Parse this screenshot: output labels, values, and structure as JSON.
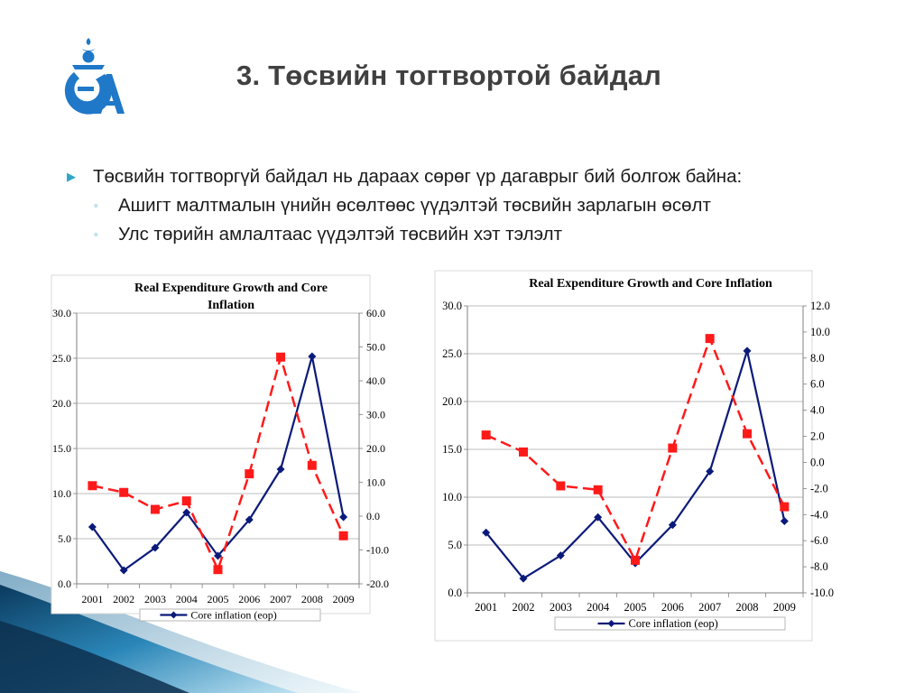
{
  "slide": {
    "title": "3. Төсвийн тогтвортой байдал",
    "logo": {
      "icon": "soyombo-logo-icon",
      "letters": "ЭЗА",
      "color": "#1f78c8"
    },
    "bullets": [
      {
        "level": 1,
        "text": "Төсвийн тогтворгүй байдал нь дараах сөрөг үр дагаврыг бий болгож байна:"
      },
      {
        "level": 2,
        "text": "Ашигт малтмалын үнийн өсөлтөөс үүдэлтэй төсвийн зарлагын өсөлт"
      },
      {
        "level": 2,
        "text": "Улс төрийн амлалтаас үүдэлтэй төсвийн хэт тэлэлт"
      }
    ],
    "accent_color": "#2da6c8"
  },
  "chart_data": [
    {
      "type": "line",
      "title": "Real Expenditure Growth and Core Inflation",
      "categories": [
        "2001",
        "2002",
        "2003",
        "2004",
        "2005",
        "2006",
        "2007",
        "2008",
        "2009"
      ],
      "y_left": {
        "range": [
          0,
          30
        ],
        "ticks": [
          "0.0",
          "5.0",
          "10.0",
          "15.0",
          "20.0",
          "25.0",
          "30.0"
        ]
      },
      "y_right": {
        "range": [
          -20,
          60
        ],
        "ticks": [
          "-20.0",
          "-10.0",
          "0.0",
          "10.0",
          "20.0",
          "30.0",
          "40.0",
          "50.0",
          "60.0"
        ]
      },
      "series": [
        {
          "name": "Core inflation (eop)",
          "axis": "left",
          "color": "#0a1a7a",
          "marker": "diamond",
          "style": "solid",
          "values": [
            6.3,
            1.5,
            4.0,
            7.9,
            3.1,
            7.1,
            12.7,
            25.2,
            7.4
          ]
        },
        {
          "axis": "right",
          "color": "#ff1a1a",
          "marker": "square",
          "style": "dashed",
          "values": [
            9.0,
            7.0,
            2.0,
            4.5,
            -15.8,
            12.5,
            47.0,
            15.0,
            -5.8
          ]
        }
      ],
      "legend": {
        "position": "bottom",
        "entries": [
          "Core inflation (eop)"
        ]
      },
      "grid": "horizontal"
    },
    {
      "type": "line",
      "title": "Real Expenditure Growth and Core Inflation",
      "categories": [
        "2001",
        "2002",
        "2003",
        "2004",
        "2005",
        "2006",
        "2007",
        "2008",
        "2009"
      ],
      "y_left": {
        "range": [
          0,
          30
        ],
        "ticks": [
          "0.0",
          "5.0",
          "10.0",
          "15.0",
          "20.0",
          "25.0",
          "30.0"
        ]
      },
      "y_right": {
        "range": [
          -10,
          12
        ],
        "ticks": [
          "-10.0",
          "-8.0",
          "-6.0",
          "-4.0",
          "-2.0",
          "0.0",
          "2.0",
          "4.0",
          "6.0",
          "8.0",
          "10.0",
          "12.0"
        ]
      },
      "series": [
        {
          "name": "Core inflation (eop)",
          "axis": "left",
          "color": "#0a1a7a",
          "marker": "diamond",
          "style": "solid",
          "values": [
            6.3,
            1.5,
            3.9,
            7.9,
            3.1,
            7.1,
            12.7,
            25.3,
            7.5
          ]
        },
        {
          "axis": "right",
          "color": "#ff1a1a",
          "marker": "square",
          "style": "dashed",
          "values": [
            2.1,
            0.8,
            -1.8,
            -2.1,
            -7.5,
            1.1,
            9.5,
            2.2,
            -3.4
          ]
        }
      ],
      "legend": {
        "position": "bottom",
        "entries": [
          "Core inflation (eop)"
        ]
      },
      "grid": "horizontal"
    }
  ]
}
